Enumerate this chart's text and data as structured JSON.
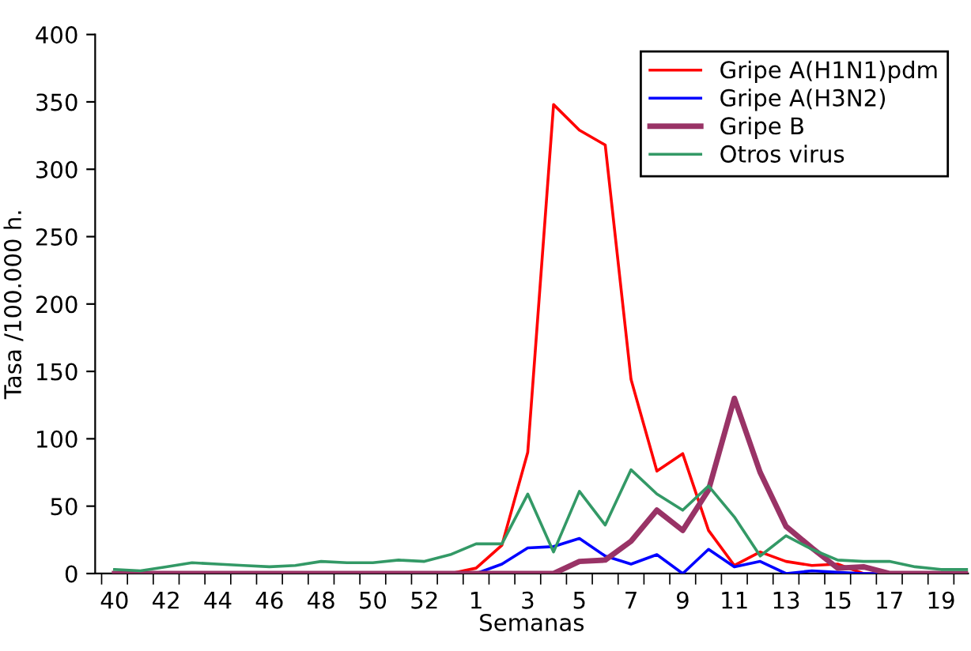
{
  "chart_data": {
    "type": "line",
    "xlabel": "Semanas",
    "ylabel": "Tasa /100.000 h.",
    "categories": [
      "40",
      null,
      "42",
      null,
      "44",
      null,
      "46",
      null,
      "48",
      null,
      "50",
      null,
      "52",
      null,
      "1",
      null,
      "3",
      null,
      "5",
      null,
      "7",
      null,
      "9",
      null,
      "11",
      null,
      "13",
      null,
      "15",
      null,
      "17",
      null,
      "19",
      null
    ],
    "series": [
      {
        "name": "Gripe A(H1N1)pdm",
        "color": "#ff0000",
        "values": [
          null,
          null,
          null,
          null,
          null,
          null,
          null,
          null,
          null,
          null,
          null,
          null,
          0,
          0,
          4,
          21,
          90,
          348,
          329,
          318,
          144,
          76,
          89,
          32,
          6,
          16,
          9,
          6,
          7,
          0,
          0,
          null,
          null,
          null
        ]
      },
      {
        "name": "Gripe A(H3N2)",
        "color": "#0000ff",
        "values": [
          null,
          null,
          null,
          null,
          null,
          null,
          null,
          null,
          null,
          null,
          null,
          null,
          null,
          0,
          0,
          7,
          19,
          20,
          26,
          13,
          7,
          14,
          0,
          18,
          5,
          9,
          0,
          2,
          1,
          0,
          0,
          0,
          null,
          null
        ]
      },
      {
        "name": "Gripe B",
        "color": "#993366",
        "values": [
          0,
          0,
          0,
          0,
          0,
          0,
          0,
          0,
          0,
          0,
          0,
          0,
          0,
          0,
          0,
          0,
          0,
          0,
          9,
          10,
          24,
          47,
          32,
          62,
          130,
          75,
          35,
          19,
          4,
          5,
          0,
          0,
          0,
          0
        ]
      },
      {
        "name": "Otros virus",
        "color": "#339966",
        "values": [
          3,
          2,
          5,
          8,
          7,
          6,
          5,
          6,
          9,
          8,
          8,
          10,
          9,
          14,
          22,
          22,
          59,
          16,
          61,
          36,
          77,
          59,
          47,
          65,
          42,
          13,
          28,
          18,
          10,
          9,
          9,
          5,
          3,
          3
        ]
      }
    ],
    "ylim": [
      0,
      400
    ],
    "yticks": [
      0,
      50,
      100,
      150,
      200,
      250,
      300,
      350,
      400
    ],
    "grid": false,
    "legend": "top right",
    "marker": "none",
    "line_style": "solid"
  }
}
